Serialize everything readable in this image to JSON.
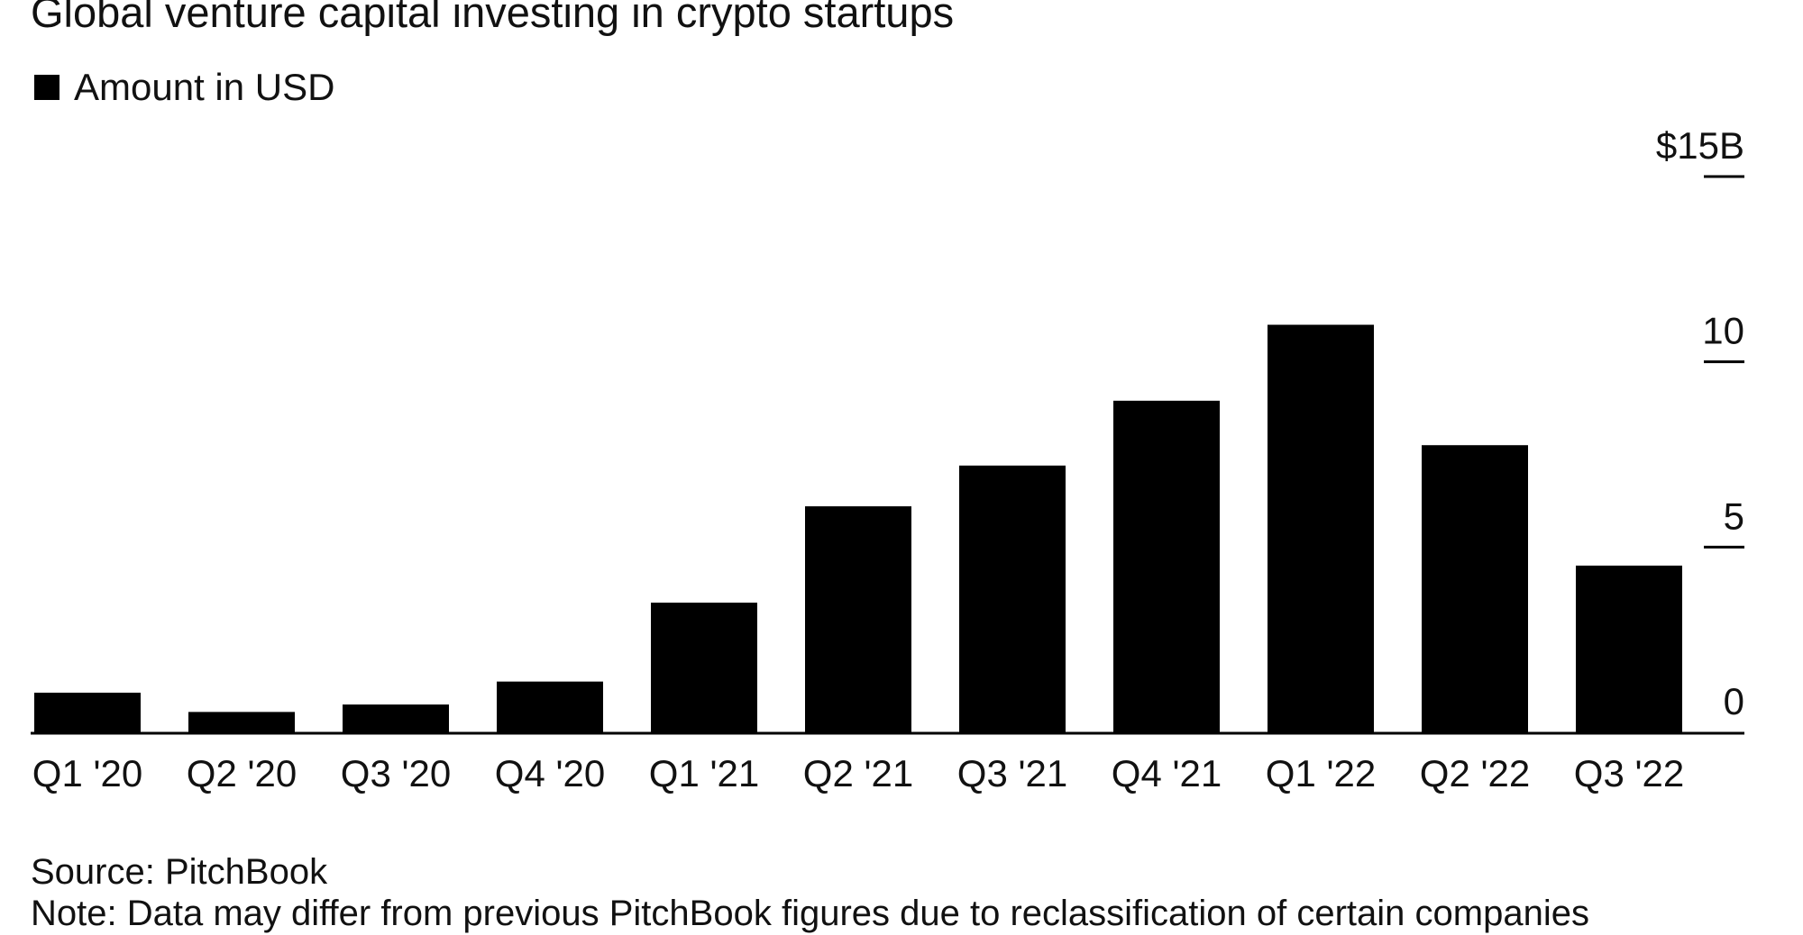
{
  "title": "Global venture capital investing in crypto startups",
  "legend": {
    "label": "Amount in USD",
    "color": "#000000"
  },
  "source": "Source: PitchBook",
  "note": "Note: Data may differ from previous PitchBook figures due to reclassification of certain companies",
  "chart_data": {
    "type": "bar",
    "title": "Global venture capital investing in crypto startups",
    "categories": [
      "Q1 '20",
      "Q2 '20",
      "Q3 '20",
      "Q4 '20",
      "Q1 '21",
      "Q2 '21",
      "Q3 '21",
      "Q4 '21",
      "Q1 '22",
      "Q2 '22",
      "Q3 '22"
    ],
    "series": [
      {
        "name": "Amount in USD",
        "color": "#000000",
        "values": [
          1.07,
          0.55,
          0.75,
          1.37,
          3.5,
          6.1,
          7.2,
          8.95,
          11.0,
          7.75,
          4.5
        ]
      }
    ],
    "ylim": [
      0,
      15
    ],
    "yticks": [
      0,
      5,
      10,
      15
    ],
    "ytick_labels": [
      "0",
      "5",
      "10",
      "$15B"
    ],
    "y_axis_position": "right",
    "grid": false,
    "legend_position": "top-left"
  }
}
